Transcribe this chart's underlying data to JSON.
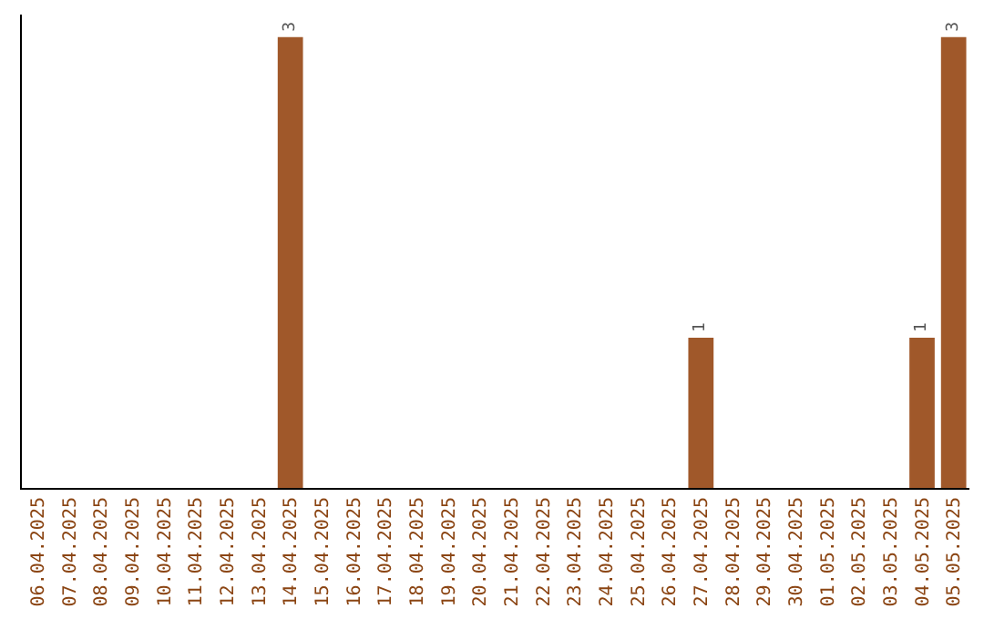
{
  "chart_data": {
    "type": "bar",
    "categories": [
      "06.04.2025",
      "07.04.2025",
      "08.04.2025",
      "09.04.2025",
      "10.04.2025",
      "11.04.2025",
      "12.04.2025",
      "13.04.2025",
      "14.04.2025",
      "15.04.2025",
      "16.04.2025",
      "17.04.2025",
      "18.04.2025",
      "19.04.2025",
      "20.04.2025",
      "21.04.2025",
      "22.04.2025",
      "23.04.2025",
      "24.04.2025",
      "25.04.2025",
      "26.04.2025",
      "27.04.2025",
      "28.04.2025",
      "29.04.2025",
      "30.04.2025",
      "01.05.2025",
      "02.05.2025",
      "03.05.2025",
      "04.05.2025",
      "05.05.2025"
    ],
    "values": [
      0,
      0,
      0,
      0,
      0,
      0,
      0,
      0,
      3,
      0,
      0,
      0,
      0,
      0,
      0,
      0,
      0,
      0,
      0,
      0,
      0,
      1,
      0,
      0,
      0,
      0,
      0,
      0,
      1,
      3
    ],
    "value_labels": [
      null,
      null,
      null,
      null,
      null,
      null,
      null,
      null,
      "3",
      null,
      null,
      null,
      null,
      null,
      null,
      null,
      null,
      null,
      null,
      null,
      null,
      "1",
      null,
      null,
      null,
      null,
      null,
      null,
      "1",
      "3"
    ],
    "color": "#a0582a",
    "tick_labels": "x"
  }
}
